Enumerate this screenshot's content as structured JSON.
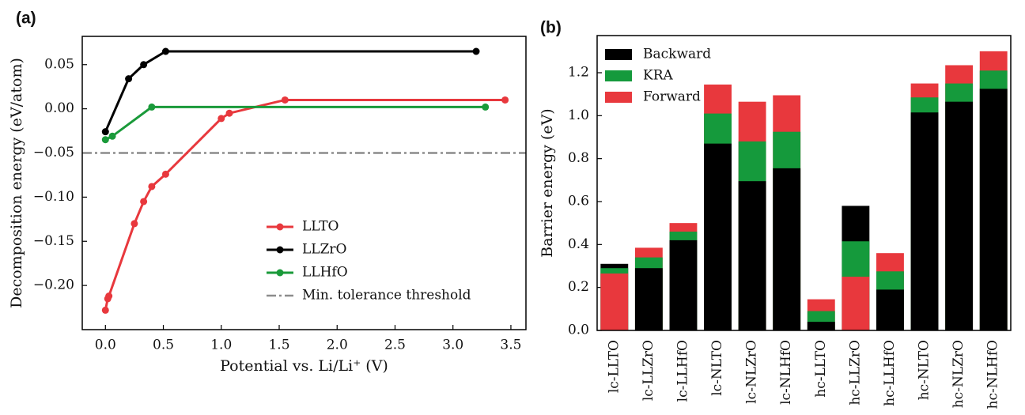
{
  "chart_data": [
    {
      "type": "line",
      "panel_label": "(a)",
      "xlabel": "Potential vs. Li/Li⁺ (V)",
      "ylabel": "Decomposition energy (eV/atom)",
      "xlim": [
        -0.2,
        3.63
      ],
      "ylim": [
        -0.25,
        0.082
      ],
      "xticks": [
        {
          "value": 0,
          "label": "0.0"
        },
        {
          "value": 0.5,
          "label": "0.5"
        },
        {
          "value": 1,
          "label": "1.0"
        },
        {
          "value": 1.5,
          "label": "1.5"
        },
        {
          "value": 2,
          "label": "2.0"
        },
        {
          "value": 2.5,
          "label": "2.5"
        },
        {
          "value": 3,
          "label": "3.0"
        },
        {
          "value": 3.5,
          "label": "3.5"
        }
      ],
      "yticks": [
        {
          "value": -0.2,
          "label": "−0.20"
        },
        {
          "value": -0.15,
          "label": "−0.15"
        },
        {
          "value": -0.1,
          "label": "−0.10"
        },
        {
          "value": -0.05,
          "label": "−0.05"
        },
        {
          "value": 0,
          "label": "0.00"
        },
        {
          "value": 0.05,
          "label": "0.05"
        }
      ],
      "legend": "lower right",
      "series": [
        {
          "name": "LLTO",
          "color": "#e8383d",
          "x": [
            0,
            0.02,
            0.03,
            0.25,
            0.33,
            0.4,
            0.52,
            1.0,
            1.07,
            1.55,
            3.45
          ],
          "values": [
            -0.228,
            -0.215,
            -0.212,
            -0.13,
            -0.105,
            -0.088,
            -0.074,
            -0.011,
            -0.005,
            0.01,
            0.01
          ]
        },
        {
          "name": "LLZrO",
          "color": "#000000",
          "x": [
            0,
            0.2,
            0.33,
            0.52,
            3.2
          ],
          "values": [
            -0.026,
            0.034,
            0.05,
            0.065,
            0.065
          ]
        },
        {
          "name": "LLHfO",
          "color": "#1a9a3a",
          "x": [
            0,
            0.06,
            0.4,
            3.28
          ],
          "values": [
            -0.035,
            -0.031,
            0.002,
            0.002
          ]
        }
      ],
      "reference_line": {
        "name": "Min. tolerance threshold",
        "value": -0.05,
        "color": "#8c8c8c"
      }
    },
    {
      "type": "bar",
      "panel_label": "(b)",
      "ylabel": "Barrier energy (eV)",
      "categories": [
        "lc-LLTO",
        "lc-LLZrO",
        "lc-LLHfO",
        "lc-NLTO",
        "lc-NLZrO",
        "lc-NLHfO",
        "hc-LLTO",
        "hc-LLZrO",
        "hc-LLHfO",
        "hc-NLTO",
        "hc-NLZrO",
        "hc-NLHfO"
      ],
      "ylim": [
        0,
        1.373
      ],
      "yticks": [
        {
          "value": 0,
          "label": "0.0"
        },
        {
          "value": 0.2,
          "label": "0.2"
        },
        {
          "value": 0.4,
          "label": "0.4"
        },
        {
          "value": 0.6,
          "label": "0.6"
        },
        {
          "value": 0.8,
          "label": "0.8"
        },
        {
          "value": 1,
          "label": "1.0"
        },
        {
          "value": 1.2,
          "label": "1.2"
        }
      ],
      "legend": "upper left",
      "series": [
        {
          "name": "Backward",
          "color": "#000000",
          "values": [
            0.31,
            0.29,
            0.42,
            0.87,
            0.695,
            0.755,
            0.04,
            0.58,
            0.19,
            1.015,
            1.065,
            1.125
          ]
        },
        {
          "name": "KRA",
          "color": "#159a3c",
          "values": [
            0.29,
            0.34,
            0.46,
            1.01,
            0.88,
            0.925,
            0.09,
            0.415,
            0.275,
            1.085,
            1.15,
            1.21
          ]
        },
        {
          "name": "Forward",
          "color": "#e8383d",
          "values": [
            0.265,
            0.385,
            0.5,
            1.145,
            1.065,
            1.095,
            0.145,
            0.25,
            0.36,
            1.15,
            1.235,
            1.3
          ]
        }
      ]
    }
  ]
}
